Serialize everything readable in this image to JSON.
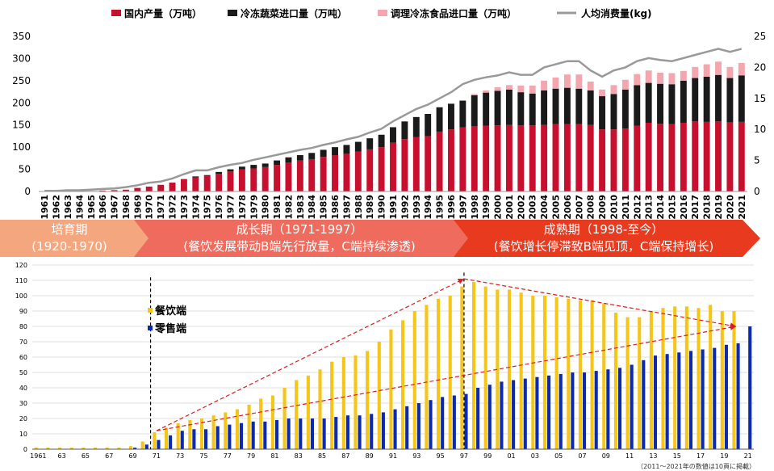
{
  "chart_data": [
    {
      "type": "bar",
      "stacked": true,
      "legend": [
        "国内产量（万吨）",
        "冷冻蔬菜进口量（万吨）",
        "调理冷冻食品进口量（万吨）",
        "人均消费量(kg)"
      ],
      "legend_placement": "top",
      "categories": [
        "1961",
        "1962",
        "1963",
        "1964",
        "1965",
        "1966",
        "1967",
        "1968",
        "1969",
        "1970",
        "1971",
        "1972",
        "1973",
        "1974",
        "1975",
        "1976",
        "1977",
        "1978",
        "1979",
        "1980",
        "1981",
        "1982",
        "1983",
        "1984",
        "1985",
        "1986",
        "1987",
        "1988",
        "1989",
        "1990",
        "1991",
        "1992",
        "1993",
        "1994",
        "1995",
        "1996",
        "1997",
        "1998",
        "1999",
        "2000",
        "2001",
        "2002",
        "2003",
        "2004",
        "2005",
        "2006",
        "2007",
        "2008",
        "2009",
        "2010",
        "2011",
        "2012",
        "2013",
        "2014",
        "2015",
        "2016",
        "2017",
        "2018",
        "2019",
        "2020",
        "2021"
      ],
      "series": [
        {
          "name": "国内产量（万吨）",
          "type": "bar",
          "color": "#c8102e",
          "values": [
            0,
            0,
            1,
            1,
            1,
            2,
            3,
            4,
            8,
            11,
            15,
            20,
            28,
            32,
            35,
            40,
            45,
            50,
            52,
            55,
            60,
            65,
            70,
            73,
            78,
            82,
            85,
            90,
            95,
            100,
            110,
            118,
            123,
            125,
            135,
            140,
            145,
            147,
            148,
            149,
            150,
            149,
            149,
            150,
            152,
            152,
            152,
            150,
            140,
            140,
            142,
            148,
            155,
            153,
            152,
            155,
            158,
            157,
            158,
            156,
            157
          ]
        },
        {
          "name": "冷冻蔬菜进口量（万吨）",
          "type": "bar",
          "color": "#1a1a1a",
          "values": [
            0,
            0,
            0,
            0,
            0,
            0,
            0,
            0,
            0,
            0,
            0,
            0,
            0,
            2,
            2,
            4,
            5,
            6,
            8,
            8,
            10,
            12,
            12,
            14,
            16,
            18,
            20,
            22,
            25,
            28,
            35,
            40,
            45,
            50,
            55,
            58,
            60,
            70,
            75,
            78,
            80,
            75,
            72,
            78,
            80,
            82,
            80,
            78,
            75,
            80,
            88,
            92,
            90,
            90,
            90,
            95,
            98,
            102,
            105,
            100,
            105
          ]
        },
        {
          "name": "调理冷冻食品进口量（万吨）",
          "type": "bar",
          "color": "#f4a6ae",
          "values": [
            0,
            0,
            0,
            0,
            0,
            0,
            0,
            0,
            0,
            0,
            0,
            0,
            0,
            0,
            0,
            0,
            0,
            0,
            0,
            0,
            0,
            0,
            0,
            0,
            0,
            0,
            0,
            0,
            0,
            0,
            0,
            0,
            0,
            0,
            0,
            0,
            0,
            3,
            5,
            8,
            10,
            15,
            18,
            22,
            25,
            30,
            32,
            20,
            15,
            20,
            22,
            25,
            28,
            25,
            25,
            22,
            25,
            28,
            30,
            25,
            28
          ]
        },
        {
          "name": "人均消费量(kg)",
          "type": "line",
          "axis": "right",
          "color": "#999999",
          "values": [
            0.1,
            0.1,
            0.2,
            0.2,
            0.3,
            0.4,
            0.5,
            0.7,
            1.0,
            1.4,
            1.6,
            2.1,
            2.8,
            3.4,
            3.4,
            3.9,
            4.3,
            4.6,
            5.1,
            5.5,
            5.9,
            6.3,
            6.7,
            7.0,
            7.5,
            7.9,
            8.4,
            8.8,
            9.5,
            10.1,
            11.3,
            12.3,
            13.3,
            14.0,
            15.0,
            16.0,
            17.3,
            18.0,
            18.4,
            18.7,
            19.2,
            18.8,
            18.8,
            20.0,
            20.5,
            21.0,
            21.0,
            19.5,
            18.5,
            19.5,
            20.0,
            21.0,
            21.5,
            21.2,
            21.0,
            21.5,
            22.0,
            22.5,
            23.0,
            22.5,
            23.0
          ]
        }
      ],
      "y_left_range": [
        0,
        350
      ],
      "y_left_ticks": [
        "0",
        "50",
        "100",
        "150",
        "200",
        "250",
        "300",
        "350"
      ],
      "y_right_range": [
        0,
        25
      ],
      "y_right_ticks": [
        "0",
        "5",
        "10",
        "15",
        "20",
        "25"
      ],
      "grid": false
    },
    {
      "type": "bar",
      "legend": [
        "餐饮端",
        "零售端"
      ],
      "legend_placement": "left",
      "x": [
        "1961",
        "62",
        "63",
        "64",
        "65",
        "66",
        "67",
        "68",
        "69",
        "70",
        "71",
        "72",
        "73",
        "74",
        "75",
        "76",
        "77",
        "78",
        "79",
        "80",
        "81",
        "82",
        "83",
        "84",
        "85",
        "86",
        "87",
        "88",
        "89",
        "90",
        "91",
        "92",
        "93",
        "94",
        "95",
        "96",
        "97",
        "98",
        "99",
        "00",
        "01",
        "02",
        "03",
        "04",
        "05",
        "06",
        "07",
        "08",
        "09",
        "10",
        "11",
        "12",
        "13",
        "14",
        "15",
        "16",
        "17",
        "18",
        "19",
        "20",
        "21"
      ],
      "x_tick_labels": [
        "1961",
        "63",
        "65",
        "67",
        "69",
        "71",
        "73",
        "75",
        "77",
        "79",
        "81",
        "83",
        "85",
        "87",
        "89",
        "91",
        "93",
        "95",
        "97",
        "99",
        "01",
        "03",
        "05",
        "07",
        "09",
        "11",
        "13",
        "15",
        "17",
        "19",
        "21"
      ],
      "series": [
        {
          "name": "餐饮端",
          "color": "#f5c518",
          "values": [
            1,
            1,
            1,
            1,
            1,
            1,
            1,
            1,
            2,
            5,
            11,
            14,
            17,
            19,
            20,
            22,
            24,
            26,
            29,
            33,
            35,
            40,
            45,
            48,
            52,
            57,
            60,
            61,
            64,
            70,
            78,
            84,
            90,
            94,
            98,
            100,
            106,
            109,
            106,
            104,
            104,
            102,
            100,
            100,
            99,
            98,
            97,
            97,
            95,
            89,
            86,
            86,
            90,
            92,
            93,
            93,
            92,
            94,
            90,
            90,
            0
          ]
        },
        {
          "name": "零售端",
          "color": "#0b2ab0",
          "values": [
            0,
            0,
            0,
            0,
            0,
            0,
            0,
            0,
            1,
            3,
            6,
            9,
            12,
            13,
            13,
            15,
            16,
            17,
            18,
            18,
            19,
            20,
            20,
            20,
            20,
            21,
            22,
            22,
            23,
            24,
            26,
            28,
            30,
            32,
            34,
            35,
            36,
            40,
            42,
            44,
            45,
            46,
            47,
            48,
            49,
            50,
            50,
            51,
            52,
            53,
            55,
            58,
            61,
            62,
            63,
            64,
            65,
            66,
            68,
            69,
            80
          ]
        }
      ],
      "y_range": [
        0,
        120
      ],
      "y_ticks": [
        "0",
        "10",
        "20",
        "30",
        "40",
        "50",
        "60",
        "70",
        "80",
        "90",
        "100",
        "110",
        "120"
      ],
      "grid": true,
      "annotation": "（2011～2021年の数値は10頁に掲載）"
    }
  ],
  "phases": [
    {
      "title": "培育期",
      "range": "(1920-1970)",
      "color": "#f4a67f"
    },
    {
      "title": "成长期（1971-1997）",
      "range": "(餐饮发展带动B端先行放量，C端持续渗透)",
      "color": "#ef6b5e"
    },
    {
      "title": "成熟期（1998-至今）",
      "range": "(餐饮增长停滞致B端见顶，C端保持增长)",
      "color": "#e83a1f"
    }
  ]
}
